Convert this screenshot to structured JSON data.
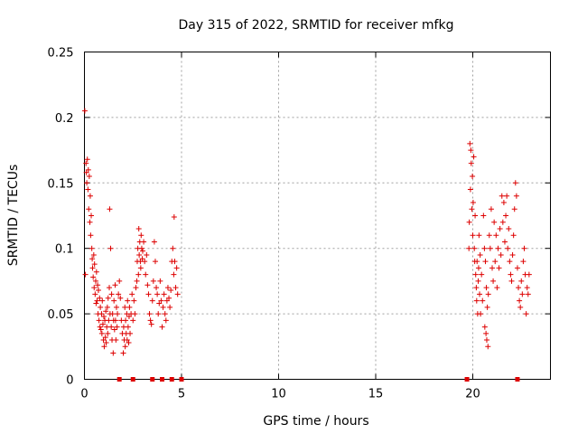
{
  "chart_data": {
    "type": "scatter",
    "title": "Day 315 of 2022, SRMTID for receiver mfkg",
    "xlabel": "GPS time / hours",
    "ylabel": "SRMTID / TECUs",
    "xlim": [
      0,
      24
    ],
    "ylim": [
      0,
      0.25
    ],
    "xticks": [
      0,
      5,
      10,
      15,
      20
    ],
    "xtick_labels": [
      "0",
      "5",
      "10",
      "15",
      "20"
    ],
    "yticks": [
      0,
      0.05,
      0.1,
      0.15,
      0.2,
      0.25
    ],
    "ytick_labels": [
      "0",
      "0.05",
      "0.1",
      "0.15",
      "0.2",
      "0.25"
    ],
    "grid": true,
    "marker": "+",
    "color": "#dd0000",
    "series": [
      {
        "name": "SRMTID",
        "points": [
          [
            0.02,
            0.205
          ],
          [
            0.05,
            0.08
          ],
          [
            0.08,
            0.165
          ],
          [
            0.1,
            0.158
          ],
          [
            0.12,
            0.15
          ],
          [
            0.15,
            0.168
          ],
          [
            0.18,
            0.145
          ],
          [
            0.2,
            0.16
          ],
          [
            0.22,
            0.13
          ],
          [
            0.25,
            0.155
          ],
          [
            0.28,
            0.12
          ],
          [
            0.3,
            0.14
          ],
          [
            0.32,
            0.11
          ],
          [
            0.35,
            0.125
          ],
          [
            0.38,
            0.1
          ],
          [
            0.4,
            0.092
          ],
          [
            0.42,
            0.085
          ],
          [
            0.45,
            0.078
          ],
          [
            0.48,
            0.095
          ],
          [
            0.5,
            0.07
          ],
          [
            0.52,
            0.088
          ],
          [
            0.55,
            0.065
          ],
          [
            0.58,
            0.075
          ],
          [
            0.6,
            0.058
          ],
          [
            0.62,
            0.082
          ],
          [
            0.65,
            0.06
          ],
          [
            0.68,
            0.072
          ],
          [
            0.7,
            0.05
          ],
          [
            0.72,
            0.068
          ],
          [
            0.75,
            0.045
          ],
          [
            0.78,
            0.062
          ],
          [
            0.8,
            0.04
          ],
          [
            0.82,
            0.055
          ],
          [
            0.85,
            0.038
          ],
          [
            0.88,
            0.05
          ],
          [
            0.9,
            0.035
          ],
          [
            0.92,
            0.06
          ],
          [
            0.95,
            0.042
          ],
          [
            0.98,
            0.03
          ],
          [
            1.0,
            0.048
          ],
          [
            1.02,
            0.025
          ],
          [
            1.05,
            0.045
          ],
          [
            1.08,
            0.032
          ],
          [
            1.1,
            0.052
          ],
          [
            1.12,
            0.028
          ],
          [
            1.15,
            0.04
          ],
          [
            1.18,
            0.055
          ],
          [
            1.2,
            0.035
          ],
          [
            1.22,
            0.062
          ],
          [
            1.25,
            0.045
          ],
          [
            1.28,
            0.07
          ],
          [
            1.3,
            0.13
          ],
          [
            1.32,
            0.05
          ],
          [
            1.35,
            0.1
          ],
          [
            1.38,
            0.04
          ],
          [
            1.4,
            0.065
          ],
          [
            1.42,
            0.03
          ],
          [
            1.45,
            0.05
          ],
          [
            1.48,
            0.02
          ],
          [
            1.5,
            0.045
          ],
          [
            1.52,
            0.06
          ],
          [
            1.55,
            0.038
          ],
          [
            1.58,
            0.072
          ],
          [
            1.6,
            0.045
          ],
          [
            1.62,
            0.03
          ],
          [
            1.65,
            0.055
          ],
          [
            1.68,
            0.04
          ],
          [
            1.7,
            0.05
          ],
          [
            1.75,
            0.065
          ],
          [
            1.8,
            0.075
          ],
          [
            1.85,
            0.062
          ],
          [
            1.9,
            0.045
          ],
          [
            1.95,
            0.035
          ],
          [
            2.0,
            0.02
          ],
          [
            2.02,
            0.04
          ],
          [
            2.05,
            0.03
          ],
          [
            2.08,
            0.055
          ],
          [
            2.1,
            0.025
          ],
          [
            2.12,
            0.045
          ],
          [
            2.15,
            0.035
          ],
          [
            2.18,
            0.05
          ],
          [
            2.2,
            0.03
          ],
          [
            2.22,
            0.06
          ],
          [
            2.25,
            0.04
          ],
          [
            2.28,
            0.028
          ],
          [
            2.3,
            0.048
          ],
          [
            2.32,
            0.055
          ],
          [
            2.35,
            0.035
          ],
          [
            2.4,
            0.05
          ],
          [
            2.45,
            0.065
          ],
          [
            2.5,
            0.045
          ],
          [
            2.55,
            0.06
          ],
          [
            2.6,
            0.05
          ],
          [
            2.65,
            0.07
          ],
          [
            2.7,
            0.075
          ],
          [
            2.72,
            0.09
          ],
          [
            2.75,
            0.1
          ],
          [
            2.78,
            0.08
          ],
          [
            2.8,
            0.115
          ],
          [
            2.82,
            0.095
          ],
          [
            2.85,
            0.105
          ],
          [
            2.88,
            0.09
          ],
          [
            2.9,
            0.085
          ],
          [
            2.92,
            0.11
          ],
          [
            2.95,
            0.1
          ],
          [
            2.98,
            0.092
          ],
          [
            3.0,
            0.098
          ],
          [
            3.05,
            0.105
          ],
          [
            3.1,
            0.09
          ],
          [
            3.15,
            0.08
          ],
          [
            3.2,
            0.095
          ],
          [
            3.25,
            0.072
          ],
          [
            3.3,
            0.065
          ],
          [
            3.35,
            0.05
          ],
          [
            3.4,
            0.045
          ],
          [
            3.45,
            0.042
          ],
          [
            3.5,
            0.06
          ],
          [
            3.55,
            0.075
          ],
          [
            3.6,
            0.105
          ],
          [
            3.65,
            0.09
          ],
          [
            3.7,
            0.07
          ],
          [
            3.75,
            0.065
          ],
          [
            3.8,
            0.05
          ],
          [
            3.85,
            0.058
          ],
          [
            3.9,
            0.075
          ],
          [
            3.95,
            0.06
          ],
          [
            4.0,
            0.04
          ],
          [
            4.05,
            0.055
          ],
          [
            4.1,
            0.065
          ],
          [
            4.15,
            0.05
          ],
          [
            4.2,
            0.045
          ],
          [
            4.25,
            0.06
          ],
          [
            4.3,
            0.07
          ],
          [
            4.35,
            0.062
          ],
          [
            4.4,
            0.055
          ],
          [
            4.45,
            0.068
          ],
          [
            4.5,
            0.09
          ],
          [
            4.55,
            0.1
          ],
          [
            4.6,
            0.08
          ],
          [
            4.62,
            0.124
          ],
          [
            4.65,
            0.09
          ],
          [
            4.7,
            0.07
          ],
          [
            4.75,
            0.085
          ],
          [
            4.8,
            0.065
          ],
          [
            19.8,
            0.1
          ],
          [
            19.82,
            0.12
          ],
          [
            19.85,
            0.18
          ],
          [
            19.88,
            0.145
          ],
          [
            19.9,
            0.175
          ],
          [
            19.92,
            0.165
          ],
          [
            19.95,
            0.13
          ],
          [
            19.98,
            0.155
          ],
          [
            20.0,
            0.11
          ],
          [
            20.02,
            0.135
          ],
          [
            20.05,
            0.17
          ],
          [
            20.08,
            0.1
          ],
          [
            20.1,
            0.09
          ],
          [
            20.12,
            0.125
          ],
          [
            20.15,
            0.08
          ],
          [
            20.18,
            0.07
          ],
          [
            20.2,
            0.06
          ],
          [
            20.22,
            0.09
          ],
          [
            20.25,
            0.05
          ],
          [
            20.28,
            0.075
          ],
          [
            20.3,
            0.085
          ],
          [
            20.32,
            0.11
          ],
          [
            20.35,
            0.065
          ],
          [
            20.38,
            0.095
          ],
          [
            20.4,
            0.05
          ],
          [
            20.45,
            0.08
          ],
          [
            20.5,
            0.06
          ],
          [
            20.55,
            0.125
          ],
          [
            20.6,
            0.1
          ],
          [
            20.62,
            0.04
          ],
          [
            20.65,
            0.09
          ],
          [
            20.68,
            0.035
          ],
          [
            20.7,
            0.07
          ],
          [
            20.72,
            0.03
          ],
          [
            20.75,
            0.055
          ],
          [
            20.78,
            0.025
          ],
          [
            20.8,
            0.065
          ],
          [
            20.85,
            0.11
          ],
          [
            20.9,
            0.1
          ],
          [
            20.95,
            0.13
          ],
          [
            21.0,
            0.085
          ],
          [
            21.05,
            0.075
          ],
          [
            21.1,
            0.12
          ],
          [
            21.15,
            0.09
          ],
          [
            21.2,
            0.11
          ],
          [
            21.25,
            0.07
          ],
          [
            21.3,
            0.1
          ],
          [
            21.35,
            0.085
          ],
          [
            21.4,
            0.115
          ],
          [
            21.45,
            0.095
          ],
          [
            21.5,
            0.14
          ],
          [
            21.55,
            0.12
          ],
          [
            21.6,
            0.135
          ],
          [
            21.65,
            0.105
          ],
          [
            21.7,
            0.125
          ],
          [
            21.75,
            0.14
          ],
          [
            21.8,
            0.1
          ],
          [
            21.85,
            0.115
          ],
          [
            21.9,
            0.09
          ],
          [
            21.95,
            0.08
          ],
          [
            22.0,
            0.075
          ],
          [
            22.05,
            0.095
          ],
          [
            22.1,
            0.11
          ],
          [
            22.15,
            0.13
          ],
          [
            22.2,
            0.15
          ],
          [
            22.25,
            0.14
          ],
          [
            22.3,
            0.085
          ],
          [
            22.35,
            0.07
          ],
          [
            22.4,
            0.06
          ],
          [
            22.45,
            0.055
          ],
          [
            22.5,
            0.075
          ],
          [
            22.55,
            0.065
          ],
          [
            22.6,
            0.09
          ],
          [
            22.65,
            0.1
          ],
          [
            22.7,
            0.08
          ],
          [
            22.75,
            0.05
          ],
          [
            22.8,
            0.07
          ],
          [
            22.85,
            0.065
          ],
          [
            22.9,
            0.08
          ]
        ]
      }
    ],
    "axis_markers": [
      1.8,
      2.5,
      3.5,
      4.0,
      4.5,
      5.0,
      19.7,
      22.3
    ]
  }
}
